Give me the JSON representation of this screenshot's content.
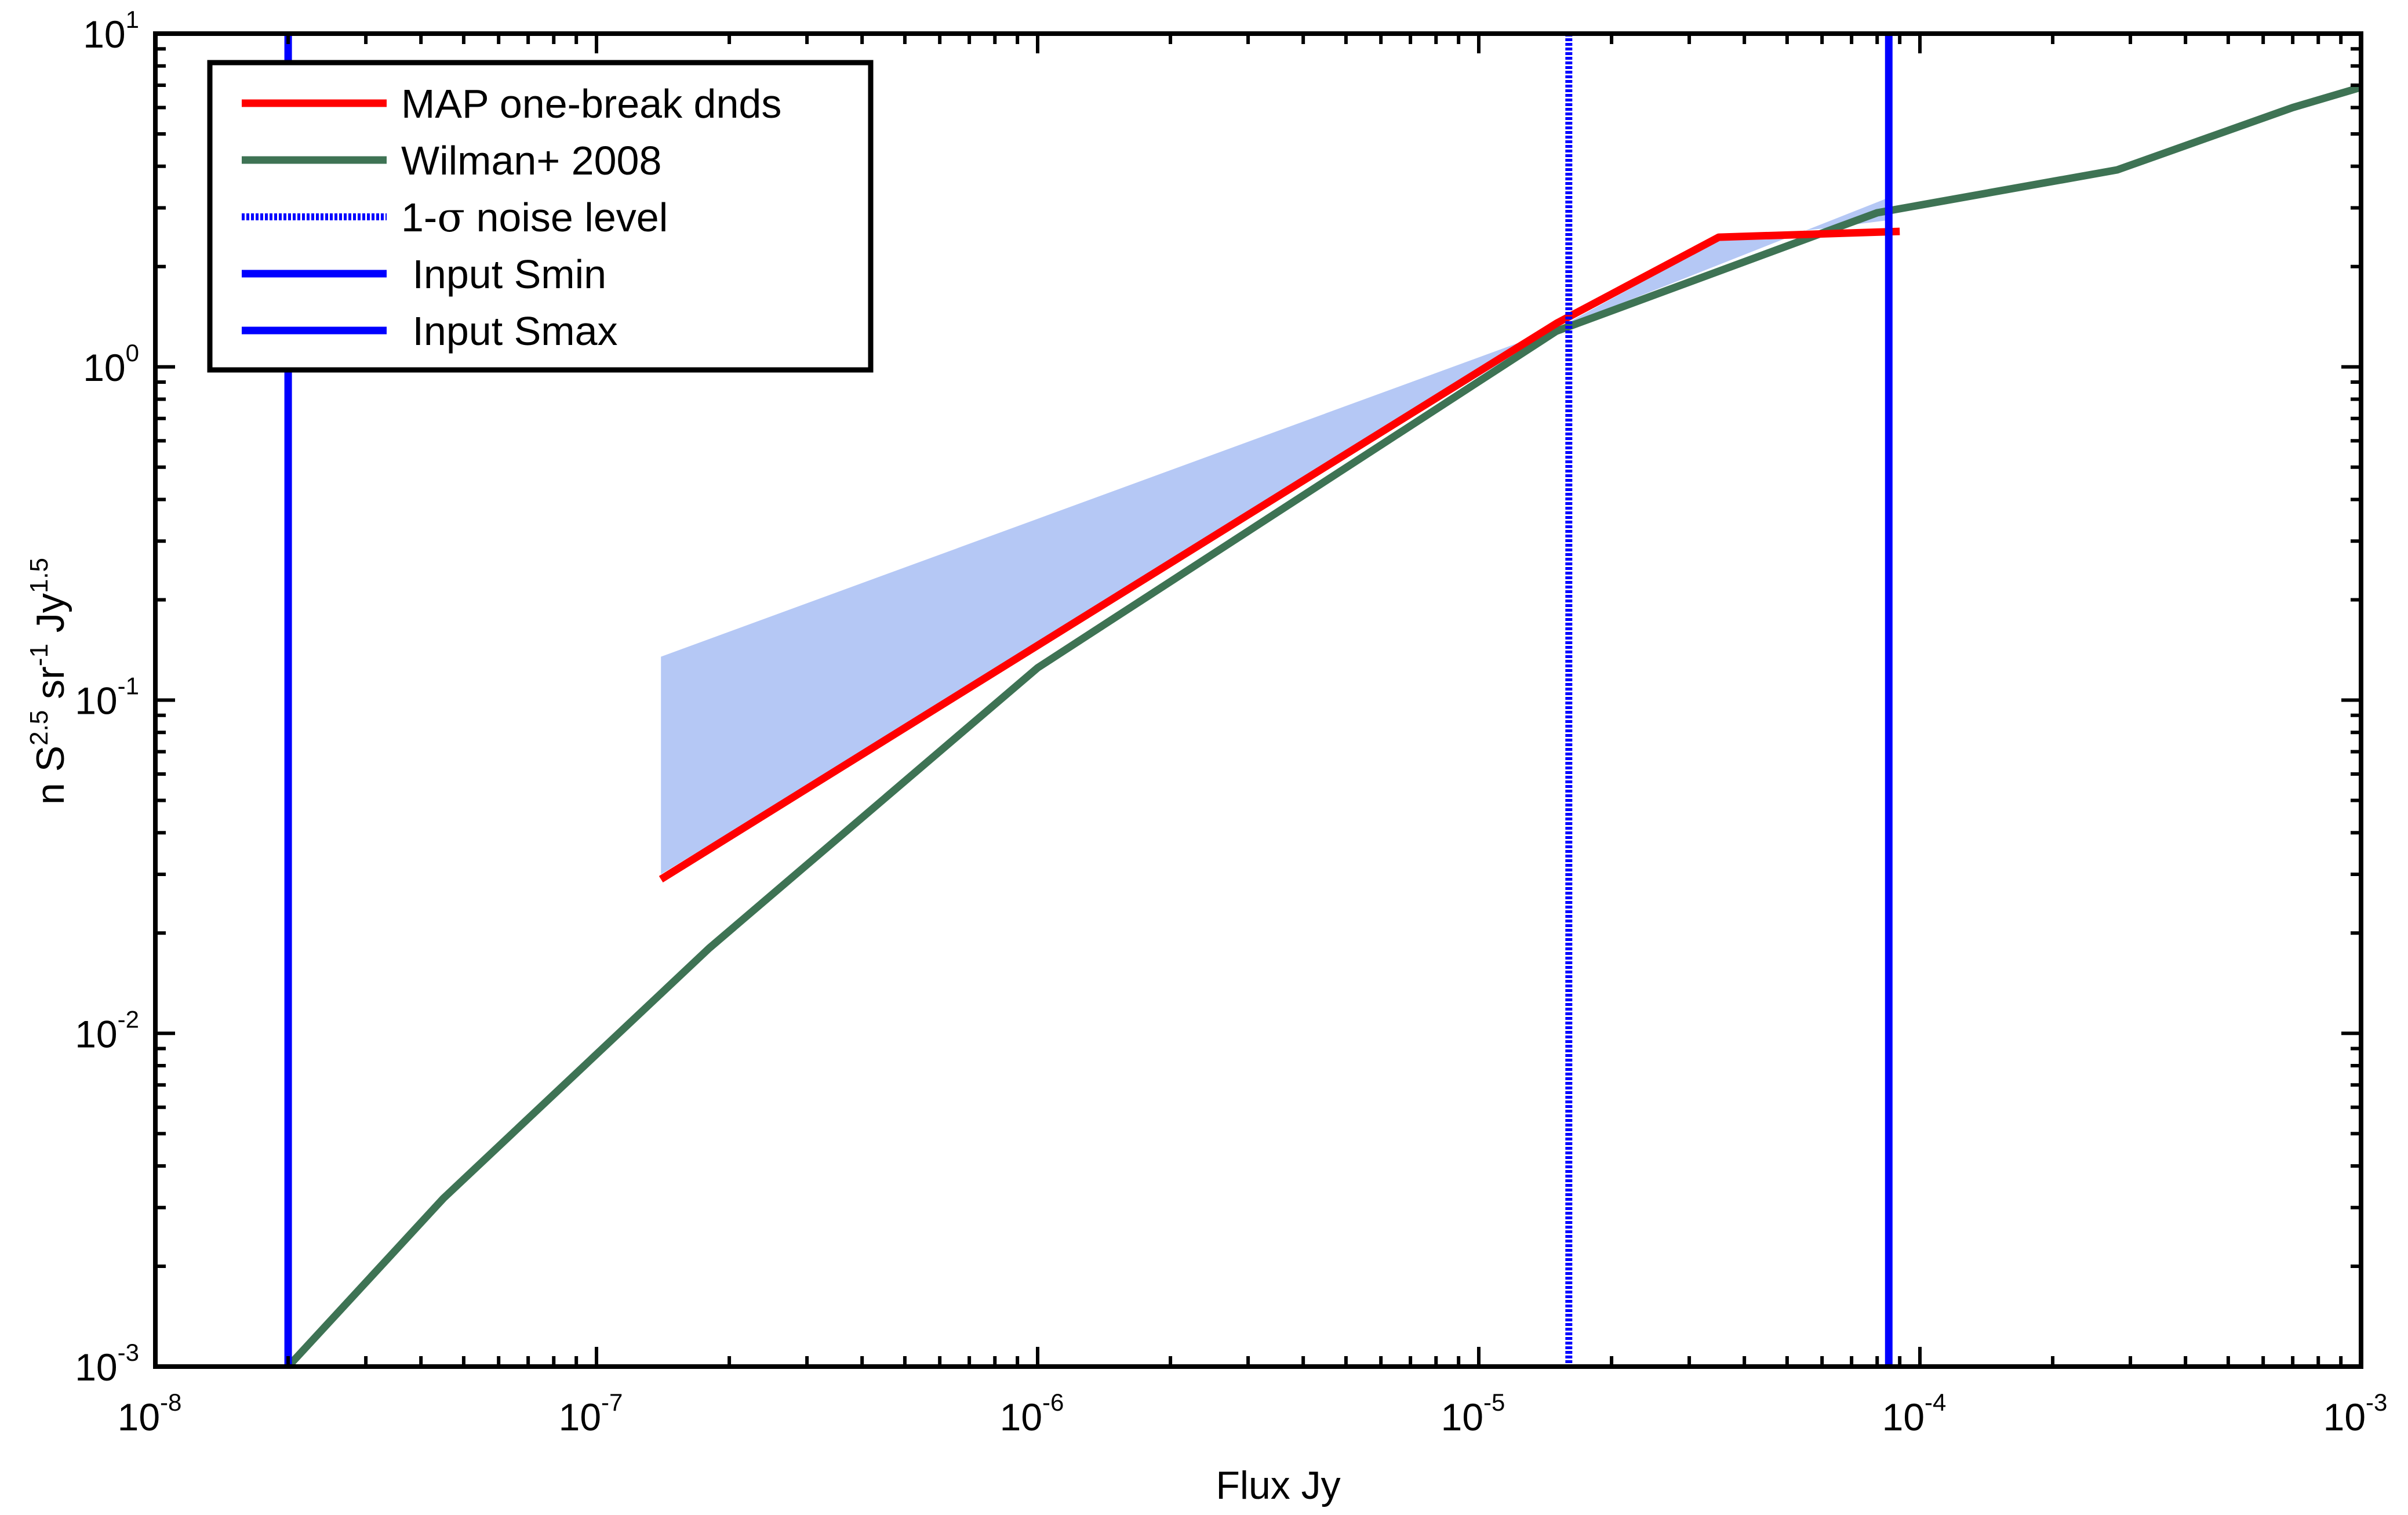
{
  "chart_data": {
    "type": "line",
    "title": "",
    "xlabel": "Flux Jy",
    "ylabel": "n S^2.5 sr^-1 Jy^1.5",
    "xscale": "log",
    "yscale": "log",
    "xlim": [
      1e-08,
      0.001
    ],
    "ylim": [
      0.001,
      10
    ],
    "grid": false,
    "legend_position": "top-left",
    "x_ticks": [
      {
        "base": "10",
        "exp": "-8",
        "value": 1e-08
      },
      {
        "base": "10",
        "exp": "-7",
        "value": 1e-07
      },
      {
        "base": "10",
        "exp": "-6",
        "value": 1e-06
      },
      {
        "base": "10",
        "exp": "-5",
        "value": 1e-05
      },
      {
        "base": "10",
        "exp": "-4",
        "value": 0.0001
      },
      {
        "base": "10",
        "exp": "-3",
        "value": 0.001
      }
    ],
    "y_ticks": [
      {
        "base": "10",
        "exp": "-3",
        "value": 0.001
      },
      {
        "base": "10",
        "exp": "-2",
        "value": 0.01
      },
      {
        "base": "10",
        "exp": "-1",
        "value": 0.1
      },
      {
        "base": "10",
        "exp": "0",
        "value": 1
      },
      {
        "base": "10",
        "exp": "1",
        "value": 10
      }
    ],
    "band": {
      "color": "#b5c8f5",
      "upper": [
        [
          1.4e-07,
          0.135
        ],
        [
          1.5e-05,
          1.3
        ],
        [
          8.4e-05,
          3.2
        ]
      ],
      "lower": [
        [
          8.4e-05,
          2.75
        ],
        [
          6e-05,
          2.6
        ],
        [
          3.5e-05,
          2.4
        ],
        [
          1.5e-05,
          1.3
        ],
        [
          1.4e-07,
          0.03
        ]
      ]
    },
    "series": [
      {
        "name": "MAP one-break dnds",
        "color": "#ff0000",
        "style": "solid",
        "points": [
          [
            1.4e-07,
            0.029
          ],
          [
            1.5e-05,
            1.35
          ],
          [
            3.5e-05,
            2.45
          ],
          [
            9e-05,
            2.55
          ]
        ]
      },
      {
        "name": "Wilman+ 2008",
        "color": "#3e7354",
        "style": "solid",
        "points": [
          [
            2e-08,
            0.001
          ],
          [
            4.5e-08,
            0.0032
          ],
          [
            1.8e-07,
            0.018
          ],
          [
            1e-06,
            0.125
          ],
          [
            1.5e-05,
            1.28
          ],
          [
            8e-05,
            2.9
          ],
          [
            0.00028,
            3.9
          ],
          [
            0.0007,
            6.0
          ],
          [
            0.001,
            6.9
          ]
        ]
      }
    ],
    "vlines": [
      {
        "name": "1-σ noise level",
        "x": 1.6e-05,
        "color": "#0000ff",
        "style": "dotted"
      },
      {
        "name": "Input Smin",
        "x": 2e-08,
        "color": "#0000ff",
        "style": "solid"
      },
      {
        "name": "Input Smax",
        "x": 8.5e-05,
        "color": "#0000ff",
        "style": "solid"
      }
    ],
    "legend": [
      {
        "label": "MAP one-break dnds",
        "color": "#ff0000",
        "style": "solid"
      },
      {
        "label": "Wilman+ 2008",
        "color": "#3e7354",
        "style": "solid"
      },
      {
        "label_prefix": "1-",
        "label_symbol": "σ",
        "label_suffix": " noise level",
        "color": "#0000ff",
        "style": "dotted"
      },
      {
        "label": " Input Smin",
        "color": "#0000ff",
        "style": "solid"
      },
      {
        "label": " Input Smax",
        "color": "#0000ff",
        "style": "solid"
      }
    ]
  }
}
